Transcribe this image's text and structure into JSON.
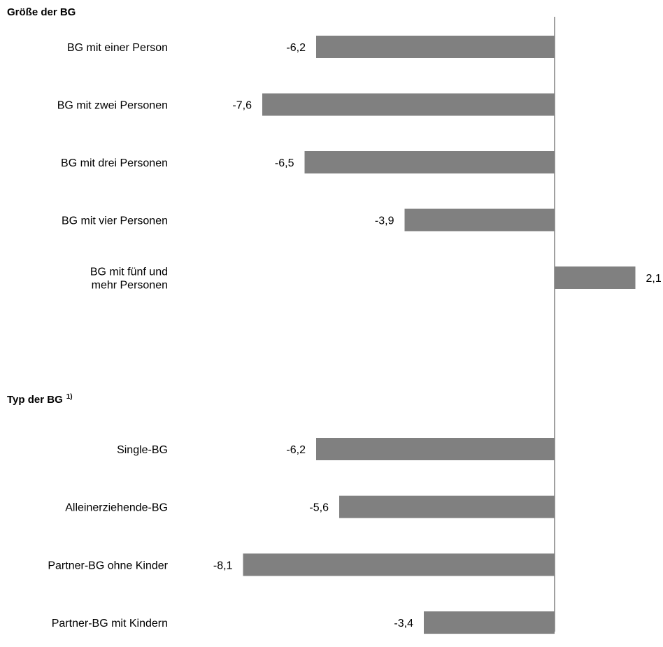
{
  "chart_data": {
    "type": "bar",
    "orientation": "horizontal",
    "title": "",
    "xlabel": "",
    "ylabel": "",
    "xlim": [
      -8.5,
      2.3
    ],
    "grid": false,
    "legend": "none",
    "bar_color": "#808080",
    "axis_color": "#808080",
    "groups": [
      {
        "title": "Größe der BG",
        "footnote": "",
        "categories": [
          [
            "BG mit einer Person"
          ],
          [
            "BG mit zwei Personen"
          ],
          [
            "BG mit drei Personen"
          ],
          [
            "BG mit vier Personen"
          ],
          [
            "BG mit fünf und",
            "mehr Personen"
          ]
        ],
        "values": [
          -6.2,
          -7.6,
          -6.5,
          -3.9,
          2.1
        ],
        "value_labels": [
          "-6,2",
          "-7,6",
          "-6,5",
          "-3,9",
          "2,1"
        ]
      },
      {
        "title": "Typ der BG",
        "footnote": "1)",
        "categories": [
          [
            "Single-BG"
          ],
          [
            "Alleinerziehende-BG"
          ],
          [
            "Partner-BG ohne Kinder"
          ],
          [
            "Partner-BG mit Kindern"
          ]
        ],
        "values": [
          -6.2,
          -5.6,
          -8.1,
          -3.4
        ],
        "value_labels": [
          "-6,2",
          "-5,6",
          "-8,1",
          "-3,4"
        ]
      }
    ]
  }
}
